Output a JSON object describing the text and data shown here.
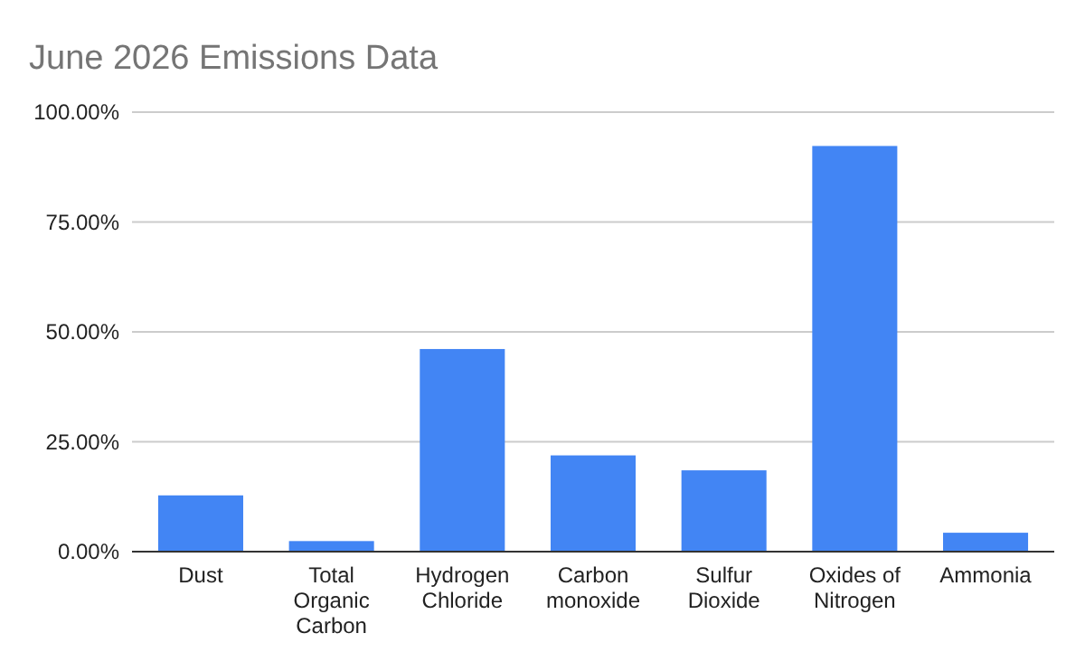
{
  "chart_data": {
    "type": "bar",
    "title": "June 2026 Emissions Data",
    "categories": [
      "Dust",
      "Total Organic Carbon",
      "Hydrogen Chloride",
      "Carbon monoxide",
      "Sulfur Dioxide",
      "Oxides of Nitrogen",
      "Ammonia"
    ],
    "values": [
      12.8,
      2.4,
      46.1,
      21.9,
      18.5,
      92.3,
      4.3
    ],
    "color": "#4285f4",
    "ylim": [
      0,
      100
    ],
    "yticks": [
      {
        "value": 0,
        "label": "0.00%"
      },
      {
        "value": 25,
        "label": "25.00%"
      },
      {
        "value": 50,
        "label": "50.00%"
      },
      {
        "value": 75,
        "label": "75.00%"
      },
      {
        "value": 100,
        "label": "100.00%"
      }
    ],
    "grid": "y"
  }
}
